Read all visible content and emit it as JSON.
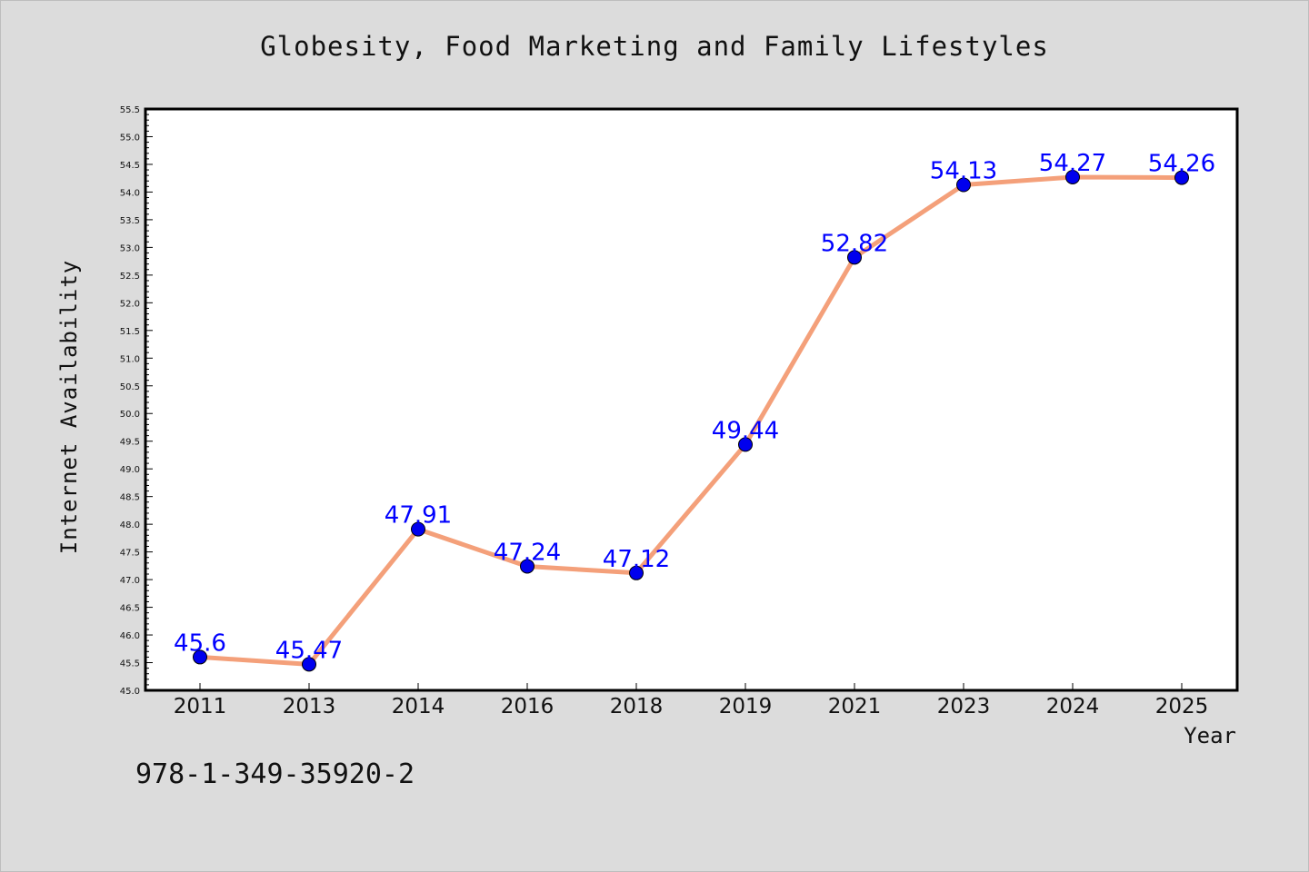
{
  "footnote": "978-1-349-35920-2",
  "chart_data": {
    "type": "line",
    "title": "Globesity, Food Marketing and Family Lifestyles",
    "xlabel": "Year",
    "ylabel": "Internet Availability",
    "categories": [
      "2011",
      "2013",
      "2014",
      "2016",
      "2018",
      "2019",
      "2021",
      "2023",
      "2024",
      "2025"
    ],
    "series": [
      {
        "values": [
          45.6,
          45.47,
          47.91,
          47.24,
          47.12,
          49.44,
          52.82,
          54.13,
          54.27,
          54.26
        ],
        "labels": [
          "45.6",
          "45.47",
          "47.91",
          "47.24",
          "47.12",
          "49.44",
          "52.82",
          "54.13",
          "54.27",
          "54.26"
        ],
        "line_color": "#f4a07a",
        "marker_color": "#0000ee"
      }
    ],
    "ylim": [
      45.0,
      55.5
    ],
    "yticks": [
      "45.0",
      "45.5",
      "46.0",
      "46.5",
      "47.0",
      "47.5",
      "48.0",
      "48.5",
      "49.0",
      "49.5",
      "50.0",
      "50.5",
      "51.0",
      "51.5",
      "52.0",
      "52.5",
      "53.0",
      "53.5",
      "54.0",
      "54.5",
      "55.0",
      "55.5"
    ],
    "label_color": "#0000ff",
    "grid": false,
    "legend": "none"
  }
}
